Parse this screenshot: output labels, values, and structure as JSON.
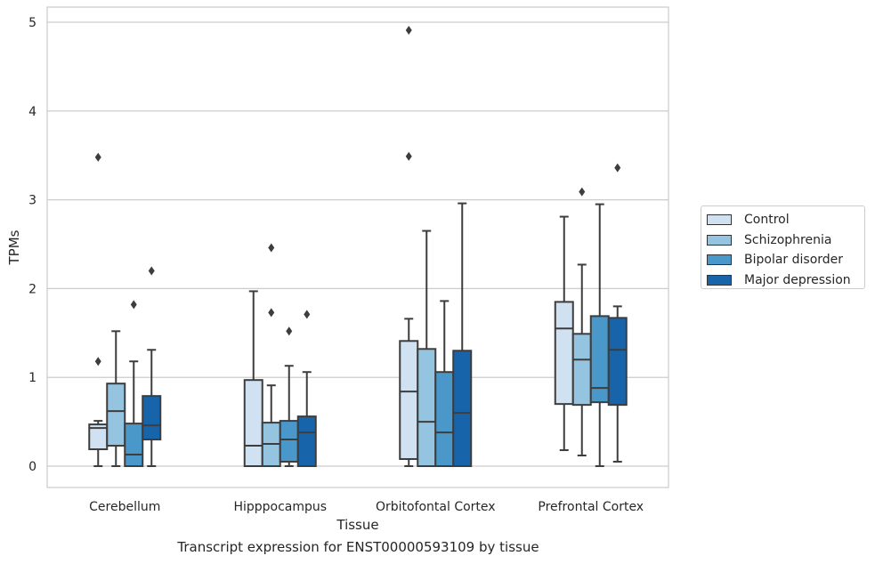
{
  "chart_data": {
    "type": "boxplot",
    "title": "",
    "xlabel": "Tissue",
    "ylabel": "TPMs",
    "caption": "Transcript expression for ENST00000593109 by tissue",
    "ylim": [
      -0.25,
      5.15
    ],
    "yticks": [
      "0",
      "1",
      "2",
      "3",
      "4",
      "5"
    ],
    "grid": true,
    "legend_position": "right",
    "categories": [
      "Cerebellum",
      "Hipppocampus",
      "Orbitofontal Cortex",
      "Prefrontal Cortex"
    ],
    "series": [
      {
        "name": "Control",
        "color": "#d0e1f2",
        "boxes": [
          {
            "min": 0.0,
            "q1": 0.19,
            "median": 0.43,
            "q3": 0.47,
            "max": 0.51,
            "outliers": [
              1.18,
              3.48
            ]
          },
          {
            "min": 0.0,
            "q1": 0.0,
            "median": 0.23,
            "q3": 0.97,
            "max": 1.97,
            "outliers": []
          },
          {
            "min": 0.0,
            "q1": 0.08,
            "median": 0.84,
            "q3": 1.41,
            "max": 1.66,
            "outliers": [
              3.49,
              4.91
            ]
          },
          {
            "min": 0.18,
            "q1": 0.7,
            "median": 1.55,
            "q3": 1.85,
            "max": 2.81,
            "outliers": []
          }
        ]
      },
      {
        "name": "Schizophrenia",
        "color": "#94c4df",
        "boxes": [
          {
            "min": 0.0,
            "q1": 0.23,
            "median": 0.62,
            "q3": 0.93,
            "max": 1.52,
            "outliers": []
          },
          {
            "min": 0.0,
            "q1": 0.0,
            "median": 0.25,
            "q3": 0.49,
            "max": 0.91,
            "outliers": [
              1.73,
              2.46
            ]
          },
          {
            "min": 0.0,
            "q1": 0.0,
            "median": 0.5,
            "q3": 1.32,
            "max": 2.65,
            "outliers": []
          },
          {
            "min": 0.12,
            "q1": 0.69,
            "median": 1.2,
            "q3": 1.49,
            "max": 2.27,
            "outliers": [
              3.09
            ]
          }
        ]
      },
      {
        "name": "Bipolar disorder",
        "color": "#4a98c9",
        "boxes": [
          {
            "min": 0.0,
            "q1": 0.0,
            "median": 0.13,
            "q3": 0.48,
            "max": 1.18,
            "outliers": [
              1.82
            ]
          },
          {
            "min": 0.0,
            "q1": 0.05,
            "median": 0.3,
            "q3": 0.51,
            "max": 1.13,
            "outliers": [
              1.52
            ]
          },
          {
            "min": 0.0,
            "q1": 0.0,
            "median": 0.38,
            "q3": 1.06,
            "max": 1.86,
            "outliers": []
          },
          {
            "min": 0.0,
            "q1": 0.72,
            "median": 0.88,
            "q3": 1.69,
            "max": 2.95,
            "outliers": []
          }
        ]
      },
      {
        "name": "Major depression",
        "color": "#1764ab",
        "boxes": [
          {
            "min": 0.0,
            "q1": 0.3,
            "median": 0.46,
            "q3": 0.79,
            "max": 1.31,
            "outliers": [
              2.2
            ]
          },
          {
            "min": 0.0,
            "q1": 0.0,
            "median": 0.38,
            "q3": 0.56,
            "max": 1.06,
            "outliers": [
              1.71
            ]
          },
          {
            "min": 0.0,
            "q1": 0.0,
            "median": 0.6,
            "q3": 1.3,
            "max": 2.96,
            "outliers": []
          },
          {
            "min": 0.05,
            "q1": 0.69,
            "median": 1.31,
            "q3": 1.67,
            "max": 1.8,
            "outliers": [
              3.36
            ]
          }
        ]
      }
    ]
  }
}
